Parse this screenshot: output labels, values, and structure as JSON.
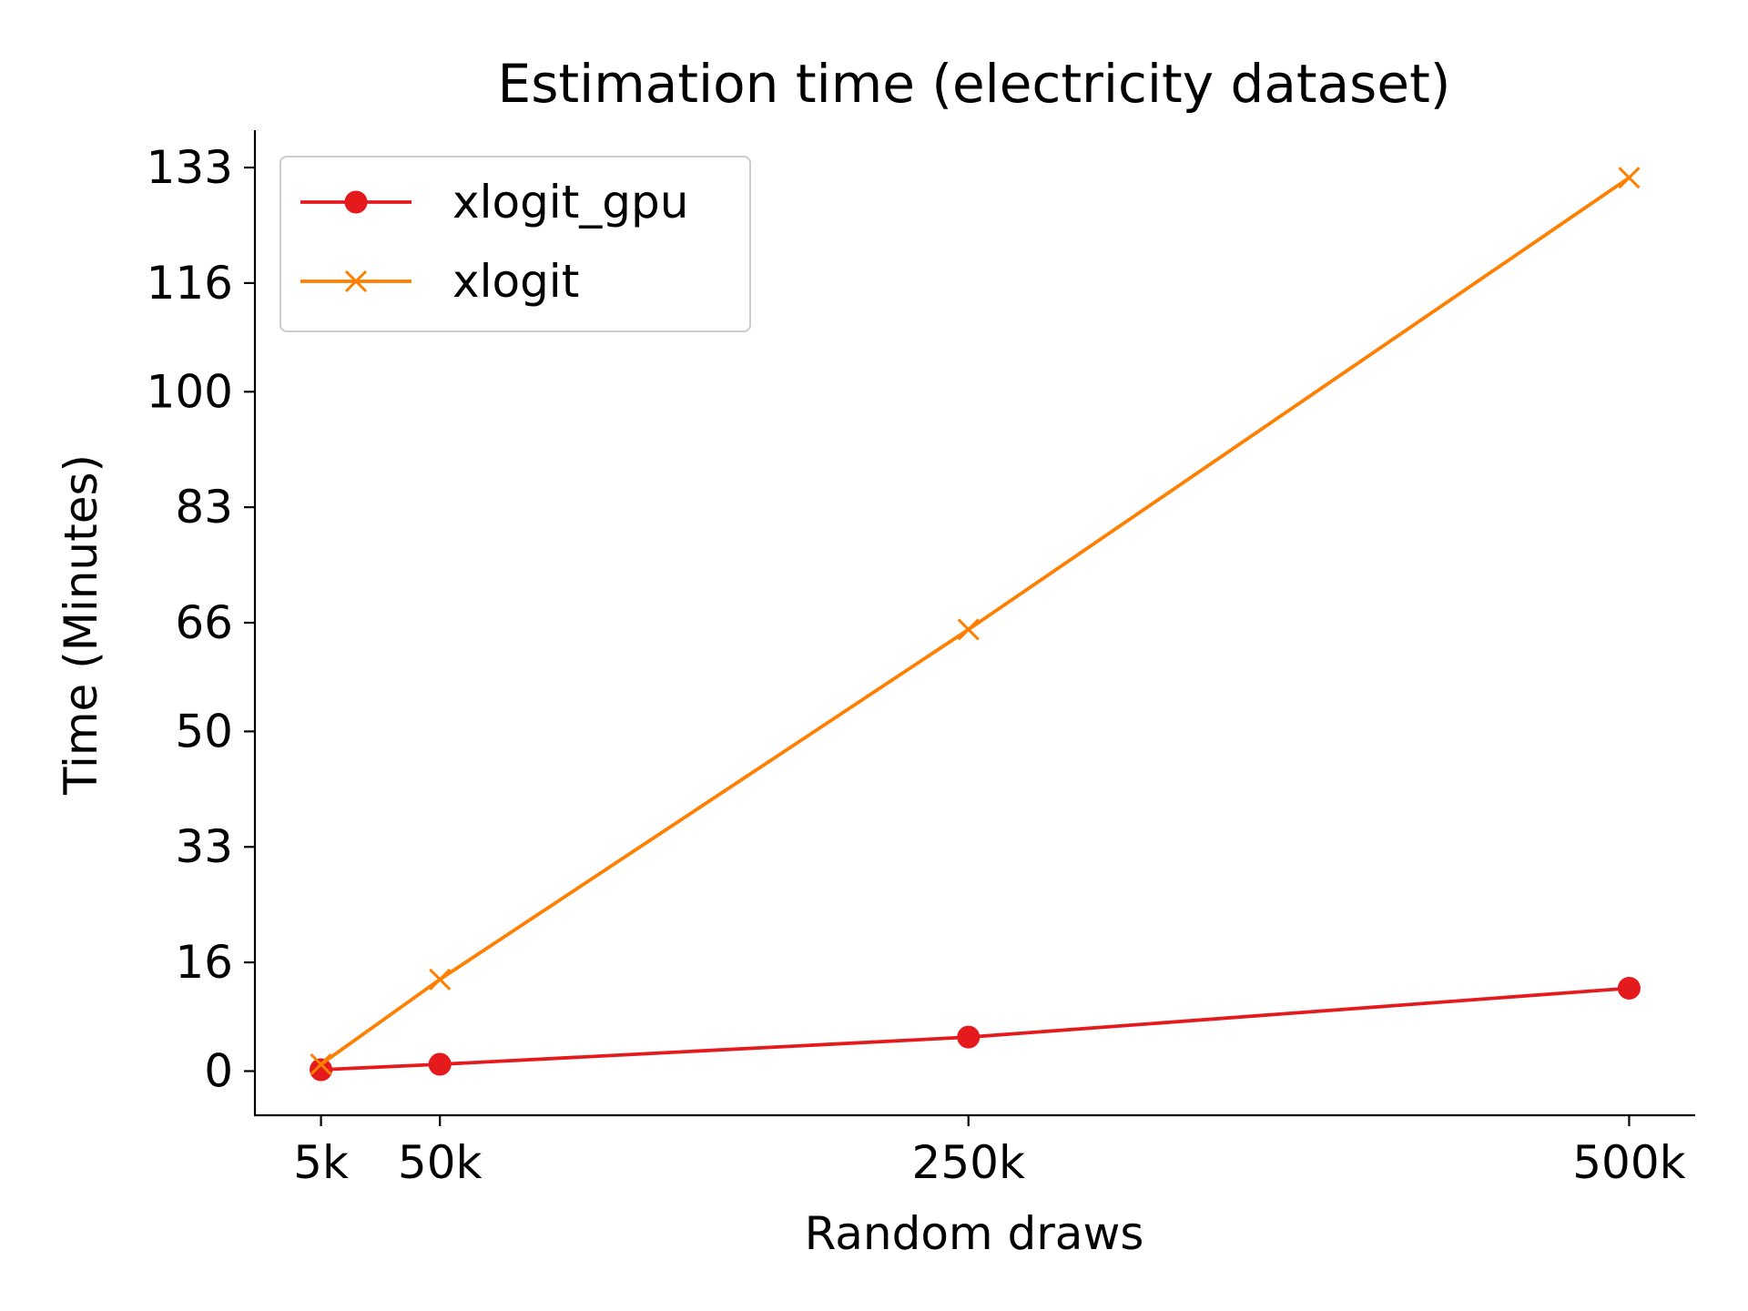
{
  "chart_data": {
    "type": "line",
    "title": "Estimation time (electricity dataset)",
    "xlabel": "Random draws",
    "ylabel": "Time (Minutes)",
    "x": [
      5000,
      50000,
      250000,
      500000
    ],
    "x_tick_labels": [
      "5k",
      "50k",
      "250k",
      "500k"
    ],
    "y_ticks": [
      0,
      16,
      33,
      50,
      66,
      83,
      100,
      116,
      133
    ],
    "xlim": [
      -20000,
      525000
    ],
    "ylim": [
      -6.5,
      138.5
    ],
    "grid": false,
    "legend_position": "top-left",
    "series": [
      {
        "name": "xlogit_gpu",
        "color": "#e41a1c",
        "marker": "circle",
        "values": [
          0.2,
          1.0,
          5.0,
          12.2
        ]
      },
      {
        "name": "xlogit",
        "color": "#ff7f00",
        "marker": "x",
        "values": [
          1.0,
          13.5,
          65.0,
          131.5
        ]
      }
    ]
  }
}
